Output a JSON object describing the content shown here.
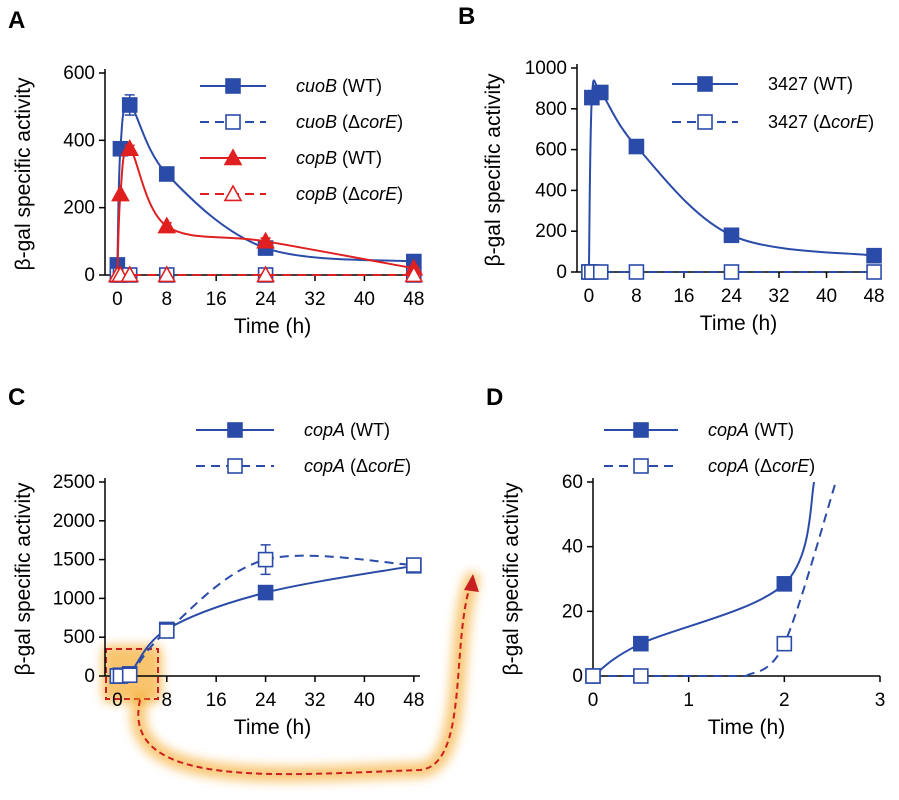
{
  "figure": {
    "blue": "#2B4BA8",
    "red": "#E02020",
    "highlight": "#F5A623",
    "highlight_dash": "#C82020"
  },
  "chart_data": [
    {
      "panel": "A",
      "type": "line",
      "xlabel": "Time (h)",
      "ylabel": "β-gal specific activity",
      "xlim": [
        -2,
        49
      ],
      "ylim": [
        0,
        600
      ],
      "xticks": [
        0,
        8,
        16,
        24,
        32,
        40,
        48
      ],
      "yticks": [
        0,
        200,
        400,
        600
      ],
      "legend_position": "top-right",
      "series": [
        {
          "gene": "cuoB",
          "strain": "(WT)",
          "color": "#2B4BA8",
          "marker": "square",
          "filled": true,
          "dashed": false,
          "x": [
            0,
            0.5,
            2,
            8,
            24,
            48
          ],
          "y": [
            30,
            375,
            505,
            300,
            80,
            40
          ],
          "err": [
            0,
            0,
            30,
            15,
            10,
            5
          ]
        },
        {
          "gene": "cuoB",
          "strain": "(ΔcorE)",
          "color": "#2B4BA8",
          "marker": "square",
          "filled": false,
          "dashed": true,
          "x": [
            0,
            0.5,
            2,
            8,
            24,
            48
          ],
          "y": [
            0,
            0,
            0,
            0,
            0,
            0
          ],
          "err": [
            0,
            0,
            0,
            0,
            0,
            0
          ]
        },
        {
          "gene": "copB",
          "strain": "(WT)",
          "color": "#E02020",
          "marker": "triangle",
          "filled": true,
          "dashed": false,
          "x": [
            0,
            0.5,
            2,
            8,
            24,
            48
          ],
          "y": [
            0,
            240,
            375,
            145,
            100,
            20
          ],
          "err": [
            0,
            0,
            10,
            10,
            10,
            5
          ]
        },
        {
          "gene": "copB",
          "strain": "(ΔcorE)",
          "color": "#E02020",
          "marker": "triangle",
          "filled": false,
          "dashed": true,
          "x": [
            0,
            0.5,
            2,
            8,
            24,
            48
          ],
          "y": [
            0,
            0,
            0,
            0,
            0,
            0
          ],
          "err": [
            0,
            0,
            0,
            0,
            0,
            0
          ]
        }
      ]
    },
    {
      "panel": "B",
      "type": "line",
      "xlabel": "Time (h)",
      "ylabel": "β-gal specific activity",
      "xlim": [
        -2,
        49
      ],
      "ylim": [
        0,
        1000
      ],
      "xticks": [
        0,
        8,
        16,
        24,
        32,
        40,
        48
      ],
      "yticks": [
        0,
        200,
        400,
        600,
        800,
        1000
      ],
      "legend_position": "top-right",
      "series": [
        {
          "gene": "3427",
          "strain": "(WT)",
          "color": "#2B4BA8",
          "marker": "square",
          "filled": true,
          "dashed": false,
          "x": [
            0,
            0.5,
            2,
            8,
            24,
            48
          ],
          "y": [
            0,
            855,
            880,
            615,
            180,
            80
          ],
          "err": [
            0,
            0,
            0,
            0,
            0,
            0
          ]
        },
        {
          "gene": "3427",
          "strain": "(ΔcorE)",
          "color": "#2B4BA8",
          "marker": "square",
          "filled": false,
          "dashed": true,
          "x": [
            0,
            0.5,
            2,
            8,
            24,
            48
          ],
          "y": [
            0,
            0,
            0,
            0,
            0,
            0
          ],
          "err": [
            0,
            0,
            0,
            0,
            0,
            0
          ]
        }
      ]
    },
    {
      "panel": "C",
      "type": "line",
      "xlabel": "Time (h)",
      "ylabel": "β-gal specific activity",
      "xlim": [
        -2,
        49
      ],
      "ylim": [
        0,
        2500
      ],
      "xticks": [
        0,
        8,
        16,
        24,
        32,
        40,
        48
      ],
      "yticks": [
        0,
        500,
        1000,
        1500,
        2000,
        2500
      ],
      "legend_position": "top-right",
      "series": [
        {
          "gene": "copA",
          "strain": "(WT)",
          "color": "#2B4BA8",
          "marker": "square",
          "filled": true,
          "dashed": false,
          "x": [
            0,
            0.5,
            2,
            8,
            24,
            48
          ],
          "y": [
            0,
            10,
            28,
            600,
            1075,
            1420
          ],
          "err": [
            0,
            0,
            0,
            40,
            30,
            70
          ]
        },
        {
          "gene": "copA",
          "strain": "(ΔcorE)",
          "color": "#2B4BA8",
          "marker": "square",
          "filled": false,
          "dashed": true,
          "x": [
            0,
            0.5,
            2,
            8,
            24,
            48
          ],
          "y": [
            0,
            0,
            10,
            580,
            1500,
            1430
          ],
          "err": [
            0,
            0,
            0,
            40,
            190,
            60
          ]
        }
      ]
    },
    {
      "panel": "D",
      "type": "line",
      "xlabel": "Time (h)",
      "ylabel": "β-gal specific activity",
      "xlim": [
        0,
        3
      ],
      "ylim": [
        0,
        60
      ],
      "xticks": [
        0,
        1,
        2,
        3
      ],
      "yticks": [
        0,
        20,
        40,
        60
      ],
      "legend_position": "top-right",
      "series": [
        {
          "gene": "copA",
          "strain": "(WT)",
          "color": "#2B4BA8",
          "marker": "square",
          "filled": true,
          "dashed": false,
          "x": [
            0,
            0.5,
            2
          ],
          "y": [
            0,
            10,
            28.5
          ],
          "err": [
            0,
            0,
            0
          ]
        },
        {
          "gene": "copA",
          "strain": "(ΔcorE)",
          "color": "#2B4BA8",
          "marker": "square",
          "filled": false,
          "dashed": true,
          "x": [
            0,
            0.5,
            2
          ],
          "y": [
            0,
            0,
            10
          ],
          "err": [
            0,
            0,
            1.5
          ]
        }
      ]
    }
  ]
}
